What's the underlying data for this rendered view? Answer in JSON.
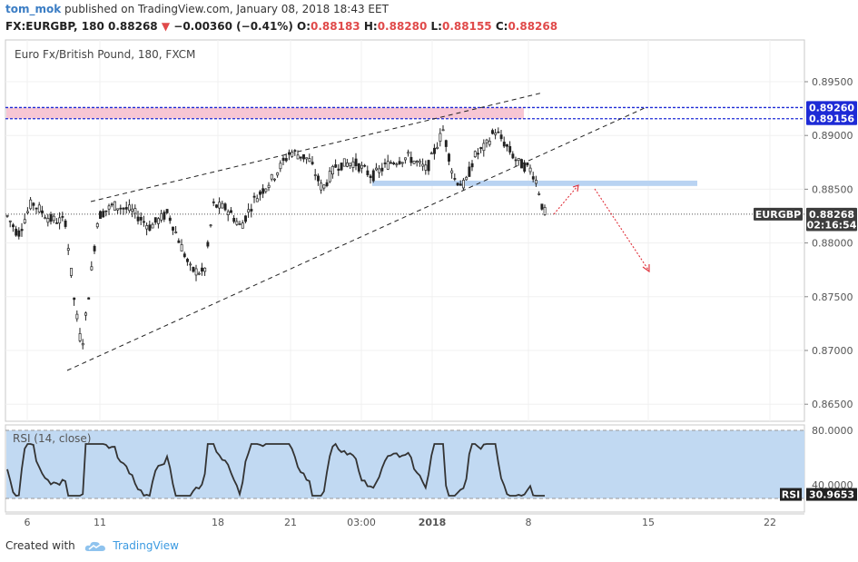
{
  "header": {
    "user": "tom_mok",
    "published": "published on TradingView.com, January 08, 2018 18:43 EET",
    "symbol": "FX:EURGBP, 180",
    "price": "0.88268",
    "change": "−0.00360 (−0.41%)",
    "o_label": "O:",
    "o": "0.88183",
    "h_label": "H:",
    "h": "0.88280",
    "l_label": "L:",
    "l": "0.88155",
    "c_label": "C:",
    "c": "0.88268"
  },
  "footer": {
    "created": "Created with",
    "brand": "TradingView"
  },
  "chart_data": {
    "type": "candlestick",
    "title": "Euro Fx/British Pound, 180, FXCM",
    "y_ticks": [
      "0.89500",
      "0.89000",
      "0.88500",
      "0.88000",
      "0.87500",
      "0.87000",
      "0.86500"
    ],
    "y_tick_values": [
      0.895,
      0.89,
      0.885,
      0.88,
      0.875,
      0.87,
      0.865
    ],
    "ylim": [
      0.8632,
      0.8995
    ],
    "x_ticks": [
      "6",
      "11",
      "18",
      "21",
      "03:00",
      "2018",
      "8",
      "15",
      "22"
    ],
    "price_labels": [
      {
        "text": "0.89260",
        "value": 0.8926,
        "color": "#1e2bd6"
      },
      {
        "text": "0.89156",
        "value": 0.89156,
        "color": "#1e2bd6"
      },
      {
        "text": "EURGBP",
        "value": 0.88268,
        "color": "#3d3d3d"
      },
      {
        "text": "0.88268",
        "value": 0.88268,
        "color": "#3d3d3d"
      },
      {
        "text": "02:16:54",
        "value": 0.8817,
        "color": "#3d3d3d"
      }
    ],
    "last_price": 0.88268,
    "resistance_zone": [
      0.89156,
      0.8926
    ],
    "support_zone": [
      0.8853,
      0.8858
    ],
    "rsi": {
      "label": "RSI (14, close)",
      "value": "30.9653",
      "tag": "RSI",
      "ticks": [
        "80.0000",
        "40.0000"
      ],
      "tick_values": [
        80,
        40
      ],
      "ylim": [
        20,
        84
      ],
      "band": [
        30,
        80
      ]
    }
  },
  "colors": {
    "candle": "#222222",
    "resistance_band": "#f7c6d4",
    "resistance_line": "#1e2bd6",
    "support_band": "#b9d3f2",
    "rsi_band": "#c1d9f2",
    "projection": "#e0303a"
  }
}
